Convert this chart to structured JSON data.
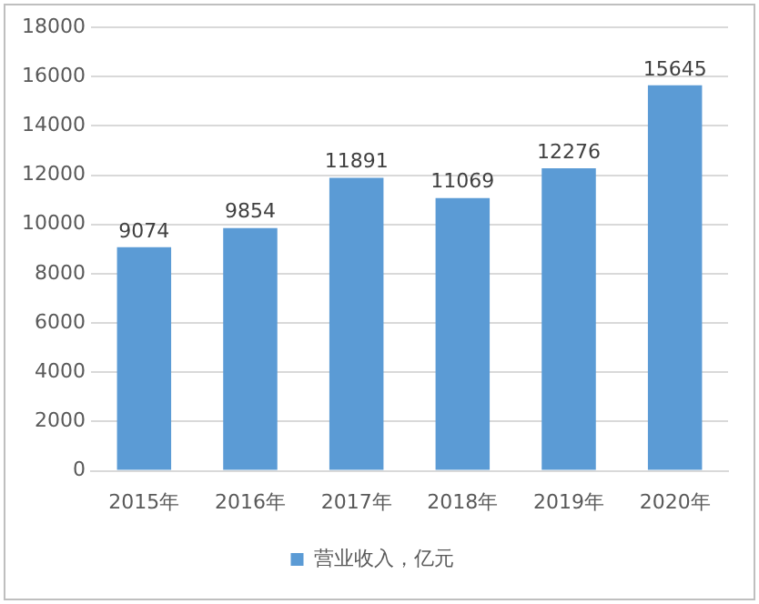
{
  "chart_data": {
    "type": "bar",
    "categories": [
      "2015年",
      "2016年",
      "2017年",
      "2018年",
      "2019年",
      "2020年"
    ],
    "series": [
      {
        "name": "营业收入，亿元",
        "color": "#5b9bd5",
        "values": [
          9074,
          9854,
          11891,
          11069,
          12276,
          15645
        ]
      }
    ],
    "ylim": [
      0,
      18000
    ],
    "yticks": [
      0,
      2000,
      4000,
      6000,
      8000,
      10000,
      12000,
      14000,
      16000,
      18000
    ],
    "grid": "y",
    "legend": "bottom",
    "data_labels": true
  }
}
